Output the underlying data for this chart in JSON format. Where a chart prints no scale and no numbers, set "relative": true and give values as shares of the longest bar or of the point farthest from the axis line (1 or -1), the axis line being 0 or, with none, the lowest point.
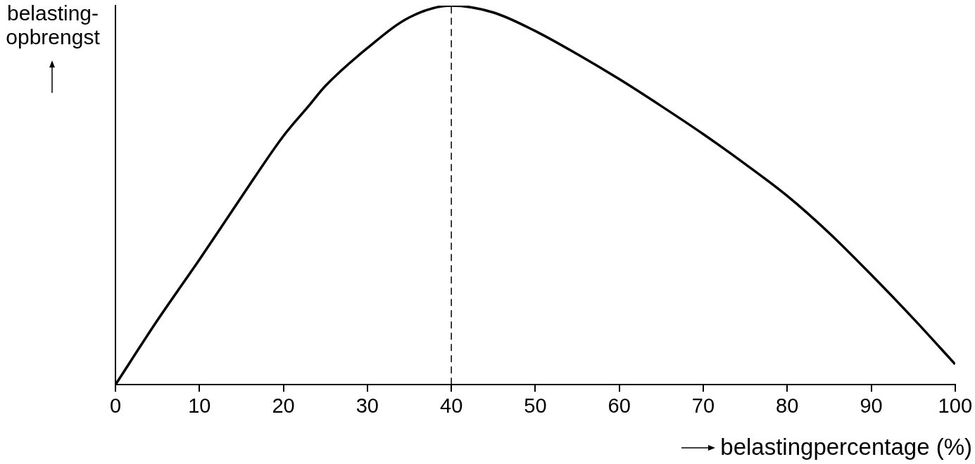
{
  "chart_data": {
    "type": "line",
    "relative": true,
    "xlabel": "belastingpercentage (%)",
    "ylabel": "belasting-\nopbrengst",
    "x": [
      0,
      5,
      10,
      15,
      20,
      23,
      25,
      30,
      35,
      40,
      45,
      50,
      55,
      60,
      65,
      70,
      75,
      80,
      85,
      90,
      95,
      100
    ],
    "series": [
      {
        "color": "#000000",
        "values": [
          0,
          0.17,
          0.33,
          0.495,
          0.656,
          0.735,
          0.788,
          0.888,
          0.969,
          1.0,
          0.982,
          0.933,
          0.872,
          0.806,
          0.735,
          0.661,
          0.582,
          0.498,
          0.4,
          0.29,
          0.175,
          0.054
        ]
      }
    ],
    "xlim": [
      0,
      100
    ],
    "xticks": [
      0,
      10,
      20,
      30,
      40,
      50,
      60,
      70,
      80,
      90,
      100
    ],
    "ref_lines": [
      {
        "axis": "x",
        "value": 40,
        "color": "#000000",
        "line_style": "dashed"
      }
    ],
    "grid": false,
    "legend": false,
    "marker": "none",
    "line_style": "solid"
  }
}
